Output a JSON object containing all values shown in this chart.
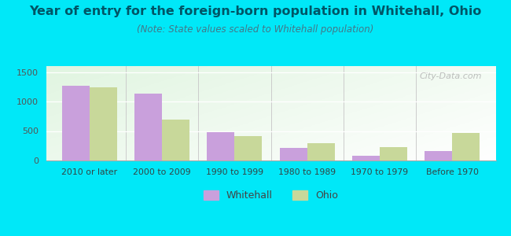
{
  "categories": [
    "2010 or later",
    "2000 to 2009",
    "1990 to 1999",
    "1980 to 1989",
    "1970 to 1979",
    "Before 1970"
  ],
  "whitehall": [
    1270,
    1130,
    480,
    215,
    85,
    155
  ],
  "ohio": [
    1240,
    690,
    410,
    290,
    230,
    465
  ],
  "whitehall_color": "#c9a0dc",
  "ohio_color": "#c8d89a",
  "title": "Year of entry for the foreign-born population in Whitehall, Ohio",
  "subtitle": "(Note: State values scaled to Whitehall population)",
  "title_fontsize": 11.5,
  "subtitle_fontsize": 8.5,
  "ylim": [
    0,
    1600
  ],
  "yticks": [
    0,
    500,
    1000,
    1500
  ],
  "background_outer": "#00e8f8",
  "background_inner_top": "#d8ead8",
  "background_inner_bot": "#f5fff5",
  "legend_labels": [
    "Whitehall",
    "Ohio"
  ],
  "bar_width": 0.38,
  "watermark": "City-Data.com",
  "title_color": "#005566",
  "subtitle_color": "#447788",
  "tick_color": "#555555",
  "xtick_color": "#334444"
}
